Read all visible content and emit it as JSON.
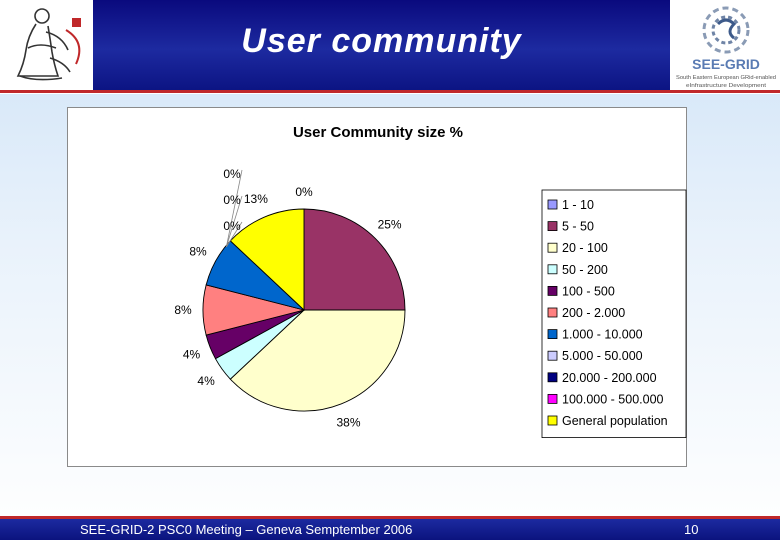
{
  "slide": {
    "title": "User community",
    "footer_text": "SEE-GRID-2 PSC0 Meeting – Geneva Semptember 2006",
    "page_number": "10",
    "right_logo": {
      "brand": "SEE-GRID",
      "tagline_1": "South Eastern European GRid-enabled",
      "tagline_2": "eInfrastructure Development"
    }
  },
  "chart_data": {
    "type": "pie",
    "title": "User Community size %",
    "legend_position": "right",
    "start_angle_deg": 0,
    "slices": [
      {
        "name": "1 - 10",
        "value": 0,
        "label": "0%",
        "color": "#9999ff"
      },
      {
        "name": "5 - 50",
        "value": 25,
        "label": "25%",
        "color": "#993366"
      },
      {
        "name": "20 - 100",
        "value": 38,
        "label": "38%",
        "color": "#ffffcc"
      },
      {
        "name": "50 - 200",
        "value": 4,
        "label": "4%",
        "color": "#ccffff"
      },
      {
        "name": "100 - 500",
        "value": 4,
        "label": "4%",
        "color": "#660066"
      },
      {
        "name": "200 - 2.000",
        "value": 8,
        "label": "8%",
        "color": "#ff8080"
      },
      {
        "name": "1.000 - 10.000",
        "value": 8,
        "label": "8%",
        "color": "#0066cc"
      },
      {
        "name": "5.000 - 50.000",
        "value": 0,
        "label": "0%",
        "color": "#ccccff"
      },
      {
        "name": "20.000 - 200.000",
        "value": 0,
        "label": "0%",
        "color": "#000080"
      },
      {
        "name": "100.000 - 500.000",
        "value": 0,
        "label": "0%",
        "color": "#ff00ff"
      },
      {
        "name": "General population",
        "value": 13,
        "label": "13%",
        "color": "#ffff00"
      }
    ]
  }
}
